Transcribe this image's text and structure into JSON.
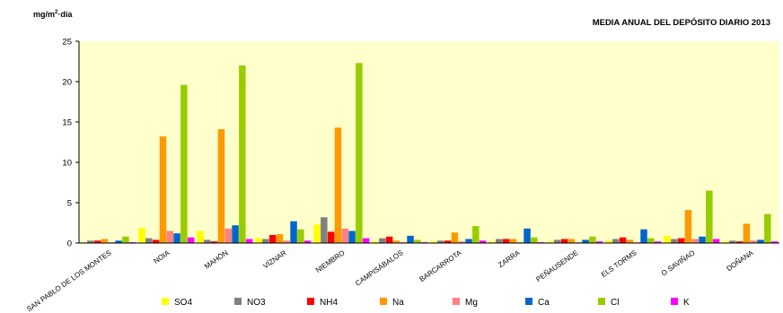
{
  "chart_data": {
    "type": "bar",
    "title": "MEDIA ANUAL DEL DEPÓSITO DIARIO 2013",
    "ylabel_base": "mg/m",
    "ylabel_sup": "2",
    "ylabel_rest": "·día",
    "xlabel": "",
    "ylim": [
      0,
      25
    ],
    "yticks": [
      0,
      5,
      10,
      15,
      20,
      25
    ],
    "grid": false,
    "legend_position": "bottom",
    "plot_background": "#FFFFCC",
    "categories": [
      "SAN PABLO DE LOS MONTES",
      "NOIA",
      "MAHÓN",
      "VÍZNAR",
      "NIEMBRO",
      "CAMPISÁBALOS",
      "BARCARROTA",
      "ZARRA",
      "PEÑAUSENDE",
      "ELS TORMS",
      "O SAVIÑAO",
      "DOÑANA"
    ],
    "series": [
      {
        "name": "SO4",
        "color": "#FFFF00",
        "values": [
          0.1,
          1.9,
          1.5,
          0.6,
          2.3,
          0.2,
          0.2,
          0.2,
          0.2,
          0.3,
          0.9,
          0.2
        ]
      },
      {
        "name": "NO3",
        "color": "#808080",
        "values": [
          0.3,
          0.6,
          0.4,
          0.5,
          3.2,
          0.6,
          0.3,
          0.5,
          0.4,
          0.5,
          0.5,
          0.3
        ]
      },
      {
        "name": "NH4",
        "color": "#FF0000",
        "values": [
          0.3,
          0.4,
          0.2,
          1.0,
          1.4,
          0.8,
          0.3,
          0.5,
          0.5,
          0.7,
          0.6,
          0.2
        ]
      },
      {
        "name": "Na",
        "color": "#FF9900",
        "values": [
          0.5,
          13.2,
          14.1,
          1.1,
          14.3,
          0.3,
          1.3,
          0.5,
          0.5,
          0.4,
          4.1,
          2.4
        ]
      },
      {
        "name": "Mg",
        "color": "#FF8080",
        "values": [
          0.1,
          1.5,
          1.8,
          0.3,
          1.8,
          0.1,
          0.2,
          0.1,
          0.1,
          0.1,
          0.5,
          0.3
        ]
      },
      {
        "name": "Ca",
        "color": "#0066CC",
        "values": [
          0.3,
          1.2,
          2.2,
          2.7,
          1.5,
          0.9,
          0.5,
          1.8,
          0.4,
          1.7,
          0.8,
          0.4
        ]
      },
      {
        "name": "Cl",
        "color": "#99CC00",
        "values": [
          0.8,
          19.6,
          22.0,
          1.7,
          22.3,
          0.4,
          2.1,
          0.7,
          0.8,
          0.6,
          6.5,
          3.6
        ]
      },
      {
        "name": "K",
        "color": "#FF00FF",
        "values": [
          0.1,
          0.7,
          0.5,
          0.3,
          0.6,
          0.1,
          0.3,
          0.1,
          0.2,
          0.2,
          0.5,
          0.2
        ]
      }
    ]
  }
}
